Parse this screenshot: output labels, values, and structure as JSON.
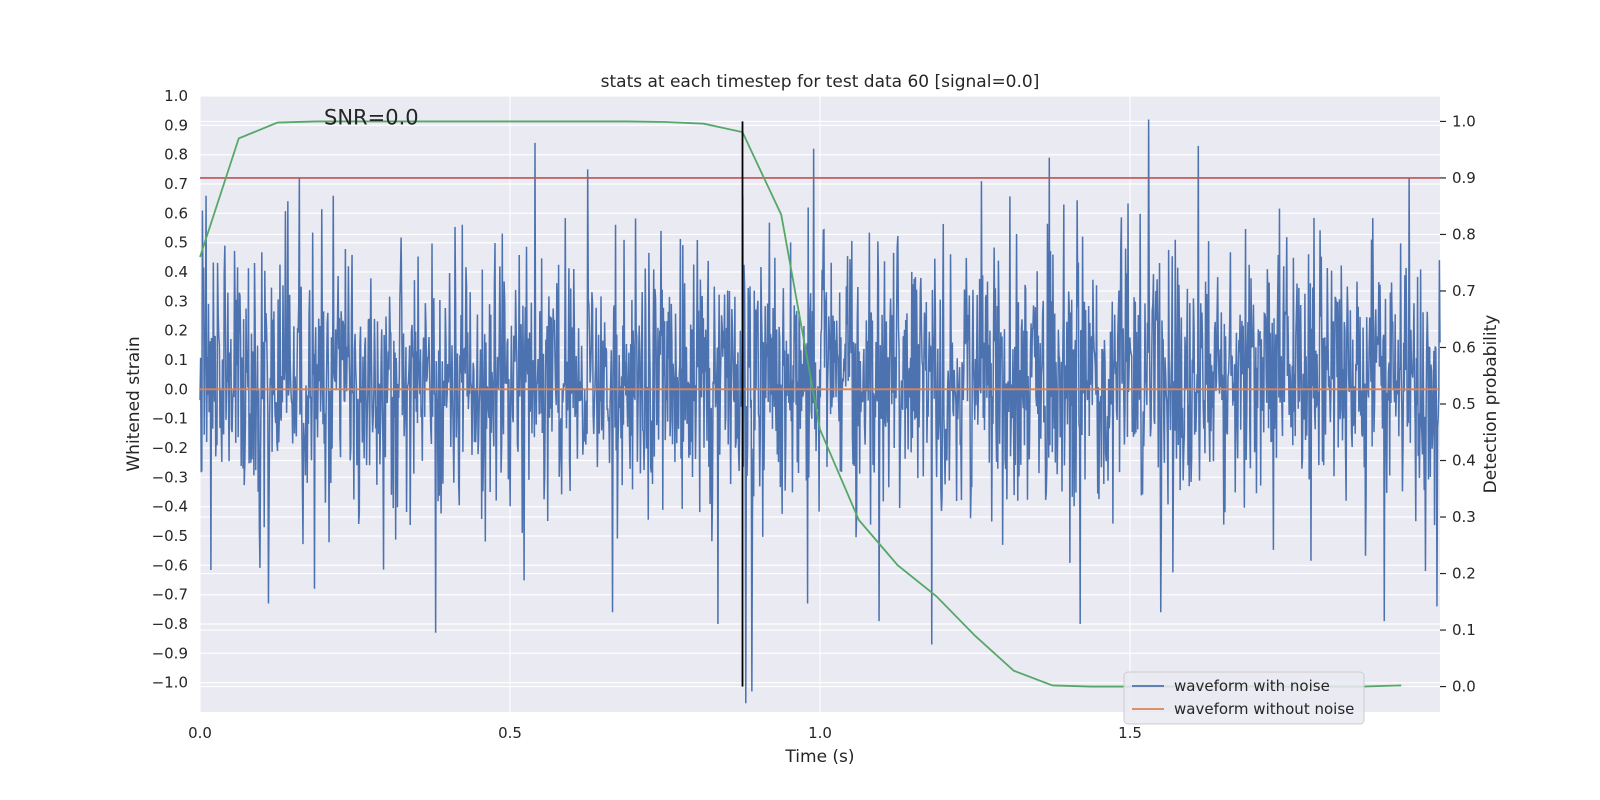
{
  "chart_data": {
    "type": "line",
    "title": "stats at each timestep for test data 60 [signal=0.0]",
    "xlabel": "Time (s)",
    "ylabel": "Whitened strain",
    "y2label": "Detection probability",
    "xlim": [
      0.0,
      2.0
    ],
    "ylim": [
      -1.1,
      1.0
    ],
    "y2lim": [
      -0.045,
      1.045
    ],
    "x_ticks": [
      0.0,
      0.5,
      1.0,
      1.5
    ],
    "x_tick_labels": [
      "0.0",
      "0.5",
      "1.0",
      "1.5"
    ],
    "y_ticks": [
      1.0,
      0.9,
      0.8,
      0.7,
      0.6,
      0.5,
      0.4,
      0.3,
      0.2,
      0.1,
      0.0,
      -0.1,
      -0.2,
      -0.3,
      -0.4,
      -0.5,
      -0.6,
      -0.7,
      -0.8,
      -0.9,
      -1.0
    ],
    "y_tick_labels": [
      "1.0",
      "0.9",
      "0.8",
      "0.7",
      "0.6",
      "0.5",
      "0.4",
      "0.3",
      "0.2",
      "0.1",
      "0.0",
      "−0.1",
      "−0.2",
      "−0.3",
      "−0.4",
      "−0.5",
      "−0.6",
      "−0.7",
      "−0.8",
      "−0.9",
      "−1.0"
    ],
    "y2_ticks": [
      1.0,
      0.9,
      0.8,
      0.7,
      0.6,
      0.5,
      0.4,
      0.3,
      0.2,
      0.1,
      0.0
    ],
    "y2_tick_labels": [
      "1.0",
      "0.9",
      "0.8",
      "0.7",
      "0.6",
      "0.5",
      "0.4",
      "0.3",
      "0.2",
      "0.1",
      "0.0"
    ],
    "annotation": "SNR=0.0",
    "annotation_pos": {
      "x": 0.2,
      "y": 0.93
    },
    "noise": {
      "name": "waveform with noise",
      "color": "#4c72b0",
      "x_start": 0.0,
      "x_end": 2.0,
      "n_points": 2048,
      "seed": 60,
      "amplitude": 0.36,
      "peaks": [
        {
          "x": 0.04,
          "y": 0.49
        },
        {
          "x": 0.01,
          "y": 0.66
        },
        {
          "x": 0.11,
          "y": -0.73
        },
        {
          "x": 0.16,
          "y": 0.72
        },
        {
          "x": 0.185,
          "y": -0.68
        },
        {
          "x": 0.215,
          "y": 0.66
        },
        {
          "x": 0.38,
          "y": -0.83
        },
        {
          "x": 0.54,
          "y": 0.84
        },
        {
          "x": 0.625,
          "y": 0.75
        },
        {
          "x": 0.665,
          "y": -0.76
        },
        {
          "x": 0.835,
          "y": -0.8
        },
        {
          "x": 0.875,
          "y": 0.66
        },
        {
          "x": 0.88,
          "y": -1.07
        },
        {
          "x": 0.89,
          "y": -1.03
        },
        {
          "x": 0.98,
          "y": -0.73
        },
        {
          "x": 0.99,
          "y": 0.82
        },
        {
          "x": 1.095,
          "y": -0.79
        },
        {
          "x": 1.18,
          "y": -0.87
        },
        {
          "x": 1.26,
          "y": 0.71
        },
        {
          "x": 1.37,
          "y": 0.79
        },
        {
          "x": 1.42,
          "y": -0.8
        },
        {
          "x": 1.53,
          "y": 0.92
        },
        {
          "x": 1.55,
          "y": -0.76
        },
        {
          "x": 1.61,
          "y": 0.83
        },
        {
          "x": 1.91,
          "y": -0.79
        },
        {
          "x": 1.95,
          "y": 0.72
        },
        {
          "x": 1.995,
          "y": -0.74
        }
      ]
    },
    "clean": {
      "name": "waveform without noise",
      "color": "#dd8452",
      "y": 0.0
    },
    "probability": {
      "name": "Detection probability",
      "color": "#55a868",
      "x": [
        0.0,
        0.0625,
        0.125,
        0.1875,
        0.25,
        0.3125,
        0.375,
        0.4375,
        0.5,
        0.5625,
        0.625,
        0.6875,
        0.75,
        0.8125,
        0.875,
        0.9375,
        1.0,
        1.0625,
        1.125,
        1.1875,
        1.25,
        1.3125,
        1.375,
        1.4375,
        1.5,
        1.5625,
        1.625,
        1.6875,
        1.75,
        1.8125,
        1.875,
        1.9375
      ],
      "y": [
        0.76,
        0.97,
        0.998,
        1.0,
        1.0,
        1.0,
        1.0,
        1.0,
        1.0,
        1.0,
        1.0,
        1.0,
        0.999,
        0.996,
        0.981,
        0.835,
        0.455,
        0.295,
        0.215,
        0.16,
        0.09,
        0.028,
        0.002,
        0.0,
        0.0,
        0.0,
        0.0,
        0.0,
        0.0,
        0.0,
        0.0,
        0.002
      ]
    },
    "threshold": {
      "color": "#c44e52",
      "y2": 0.9
    },
    "marker": {
      "color": "#000000",
      "x": 0.875
    },
    "legend": {
      "location": "lower-right",
      "entries": [
        {
          "label": "waveform with noise",
          "color": "#4c72b0"
        },
        {
          "label": "waveform without noise",
          "color": "#dd8452"
        }
      ]
    },
    "style": {
      "background": "#eaeaf2",
      "grid_color": "#ffffff",
      "grid": true
    }
  }
}
